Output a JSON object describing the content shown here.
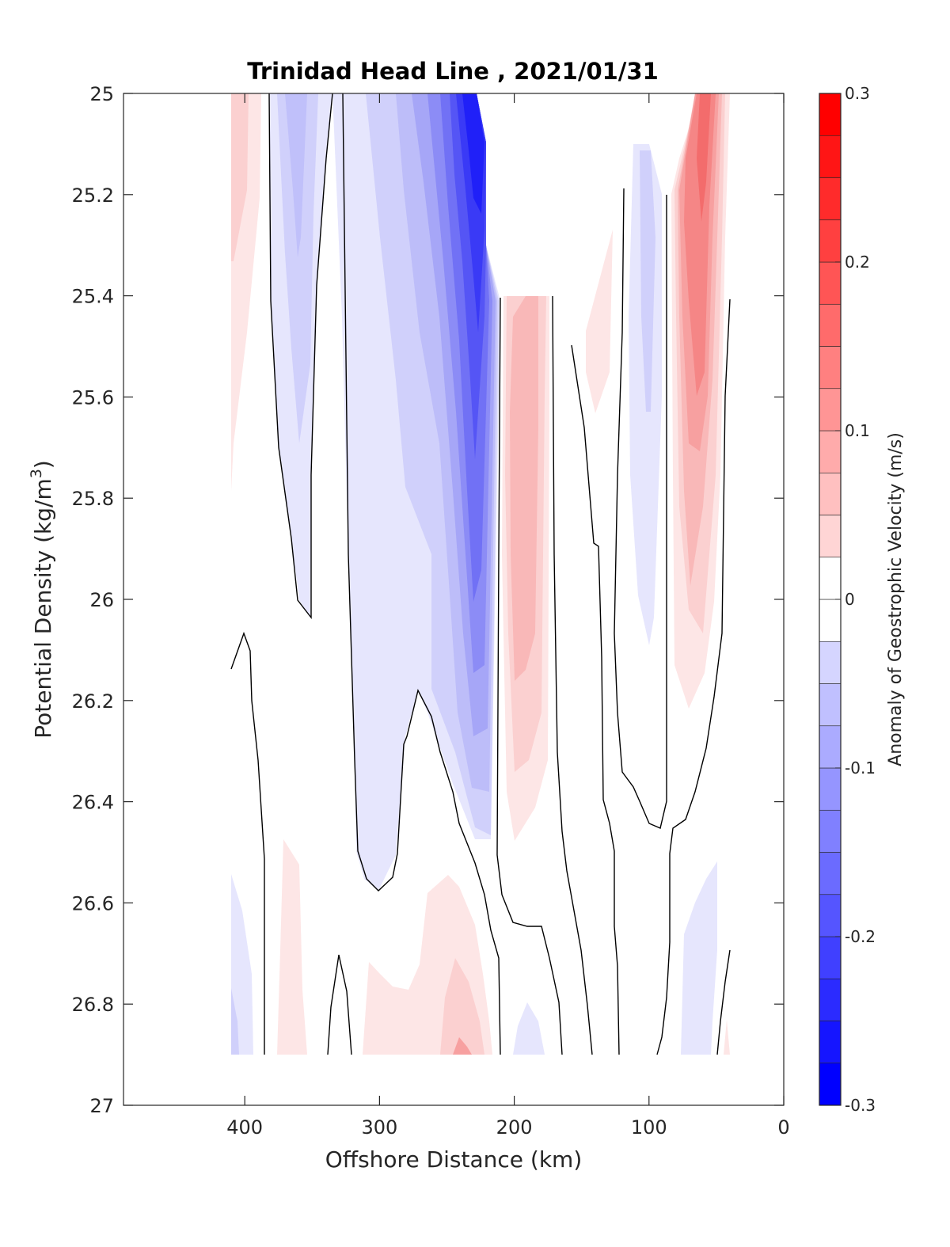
{
  "chart_data": {
    "type": "contour",
    "title": "Trinidad Head Line , 2021/01/31",
    "xlabel": "Offshore Distance (km)",
    "ylabel": "Potential Density (kg/m",
    "ylabel_sup": "3",
    "ylabel_close": ")",
    "xlim": [
      490,
      0
    ],
    "ylim": [
      25,
      27
    ],
    "y_reversed": true,
    "xticks": [
      400,
      300,
      200,
      100,
      0
    ],
    "yticks": [
      25,
      25.2,
      25.4,
      25.6,
      25.8,
      26,
      26.2,
      26.4,
      26.6,
      26.8,
      27
    ],
    "ytick_labels": [
      "25",
      "25.2",
      "25.4",
      "25.6",
      "25.8",
      "26",
      "26.2",
      "26.4",
      "26.6",
      "26.8",
      "27"
    ],
    "xtick_labels": [
      "400",
      "300",
      "200",
      "100",
      "0"
    ],
    "colorbar": {
      "label": "Anomaly of Geostrophic Velocity (m/s)",
      "range": [
        -0.3,
        0.3
      ],
      "step": 0.025,
      "ticks": [
        0.3,
        0.2,
        0.1,
        0,
        -0.1,
        -0.2,
        -0.3
      ],
      "tick_labels": [
        "0.3",
        "0.2",
        "0.1",
        "0",
        "-0.1",
        "-0.2",
        "-0.3"
      ],
      "colormap": "blue-white-red",
      "negative_color": "#0000ff",
      "positive_color": "#ff0000",
      "zero_color": "#ffffff"
    },
    "zero_contour_color": "#000000",
    "features": [
      {
        "name": "offshore-positive-upper",
        "x": [
          410,
          400
        ],
        "y": [
          25,
          25.8
        ],
        "peak": 0.05
      },
      {
        "name": "offshore-negative-upper",
        "x": [
          380,
          350
        ],
        "y": [
          25,
          25.7
        ],
        "peak": -0.05
      },
      {
        "name": "core-negative-jet",
        "x": [
          320,
          215
        ],
        "y": [
          25,
          26.5
        ],
        "peak": -0.3
      },
      {
        "name": "positive-band-200",
        "x": [
          210,
          170
        ],
        "y": [
          25.4,
          26.5
        ],
        "peak": 0.1
      },
      {
        "name": "small-positive-140",
        "x": [
          150,
          120
        ],
        "y": [
          25.3,
          25.6
        ],
        "peak": 0.05
      },
      {
        "name": "negative-band-100",
        "x": [
          115,
          85
        ],
        "y": [
          25.1,
          26.1
        ],
        "peak": -0.05
      },
      {
        "name": "nearshore-positive-jet",
        "x": [
          85,
          40
        ],
        "y": [
          25,
          26.2
        ],
        "peak": 0.2
      },
      {
        "name": "deep-positive-270",
        "x": [
          310,
          220
        ],
        "y": [
          26.55,
          26.9
        ],
        "peak": 0.1
      },
      {
        "name": "deep-positive-360",
        "x": [
          380,
          350
        ],
        "y": [
          26.5,
          26.9
        ],
        "peak": 0.05
      },
      {
        "name": "deep-negative-400",
        "x": [
          410,
          390
        ],
        "y": [
          26.55,
          26.9
        ],
        "peak": -0.05
      },
      {
        "name": "deep-negative-190",
        "x": [
          200,
          175
        ],
        "y": [
          26.8,
          26.9
        ],
        "peak": -0.05
      },
      {
        "name": "deep-negative-70",
        "x": [
          75,
          50
        ],
        "y": [
          26.55,
          26.9
        ],
        "peak": -0.05
      }
    ]
  }
}
